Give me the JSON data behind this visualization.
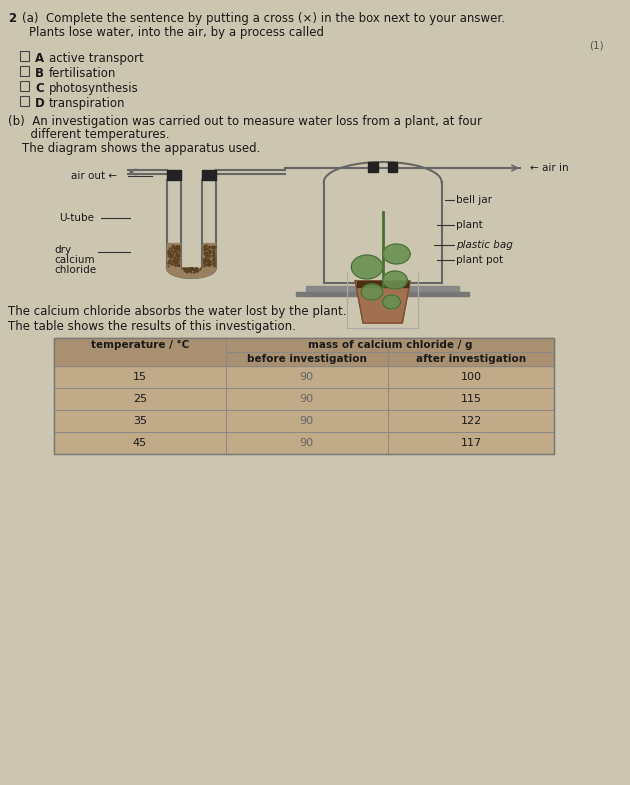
{
  "bg_color": "#ccc5b0",
  "text_color": "#1a1a1a",
  "title_q": "(a)  Complete the sentence by putting a cross (⨯) in the box next to your answer.",
  "q_num": "2",
  "sentence": "Plants lose water, into the air, by a process called",
  "mark": "(1)",
  "options": [
    {
      "letter": "A",
      "text": "active transport"
    },
    {
      "letter": "B",
      "text": "fertilisation"
    },
    {
      "letter": "C",
      "text": "photosynthesis"
    },
    {
      "letter": "D",
      "text": "transpiration"
    }
  ],
  "part_b_line1": "(b)  An investigation was carried out to measure water loss from a plant, at four",
  "part_b_line2": "      different temperatures.",
  "diagram_label": "The diagram shows the apparatus used.",
  "label_air_out": "air out ←",
  "label_utube": "U-tube",
  "label_dry": "dry",
  "label_calcium": "calcium",
  "label_chloride": "chloride",
  "label_air_in": "← air in",
  "label_bell_jar": "bell jar",
  "label_plant": "plant",
  "label_plastic_bag": "plastic bag",
  "label_plant_pot": "plant pot",
  "note1": "The calcium chloride absorbs the water lost by the plant.",
  "note2": "The table shows the results of this investigation.",
  "table_header1": "temperature / °C",
  "table_header2": "mass of calcium chloride / g",
  "table_subheader2a": "before investigation",
  "table_subheader2b": "after investigation",
  "table_data": [
    [
      15,
      90,
      100
    ],
    [
      25,
      90,
      115
    ],
    [
      35,
      90,
      122
    ],
    [
      45,
      90,
      117
    ]
  ],
  "table_bg": "#c0aa88",
  "table_header_bg": "#a89070"
}
